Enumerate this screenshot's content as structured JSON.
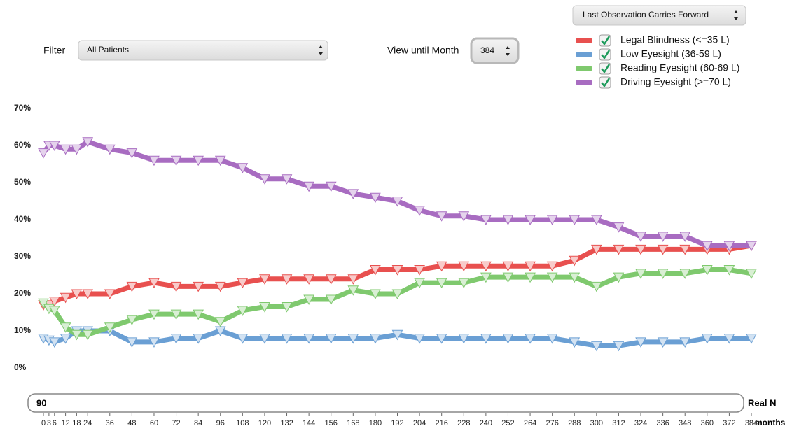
{
  "chart_data": {
    "type": "line",
    "imputation": "Last Observation Carries Forward",
    "filter_label": "Filter",
    "filter": "All Patients",
    "month_label": "View until Month",
    "month": 384,
    "n": 90,
    "n_label": "Real N",
    "xlabel": "months",
    "x": [
      0,
      3,
      6,
      12,
      18,
      24,
      36,
      48,
      60,
      72,
      84,
      96,
      108,
      120,
      132,
      144,
      156,
      168,
      180,
      192,
      204,
      216,
      228,
      240,
      252,
      264,
      276,
      288,
      300,
      312,
      324,
      336,
      348,
      360,
      372,
      384
    ],
    "xlim": [
      0,
      384
    ],
    "xticks": [
      0,
      3,
      6,
      12,
      18,
      24,
      36,
      48,
      60,
      72,
      84,
      96,
      108,
      120,
      132,
      144,
      156,
      168,
      180,
      192,
      204,
      216,
      228,
      240,
      252,
      264,
      276,
      288,
      300,
      312,
      324,
      336,
      348,
      360,
      372,
      384
    ],
    "ylim": [
      0,
      70
    ],
    "yticks": [
      {
        "value": 0,
        "label": "0%"
      },
      {
        "value": 10,
        "label": "10%"
      },
      {
        "value": 20,
        "label": "20%"
      },
      {
        "value": 30,
        "label": "30%"
      },
      {
        "value": 40,
        "label": "40%"
      },
      {
        "value": 50,
        "label": "50%"
      },
      {
        "value": 60,
        "label": "60%"
      },
      {
        "value": 70,
        "label": "70%"
      }
    ],
    "series": [
      {
        "name": "Legal Blindness (<=35 L)",
        "color": "#e8504f",
        "values": [
          17,
          17,
          18,
          19,
          20,
          20,
          20,
          22,
          23,
          22,
          22,
          22,
          23,
          24,
          24,
          24,
          24,
          24,
          26.5,
          26.5,
          26.5,
          27.5,
          27.5,
          27.5,
          27.5,
          27.5,
          27.5,
          29,
          32,
          32,
          32,
          32,
          32,
          32,
          32,
          33
        ]
      },
      {
        "name": "Low Eyesight (36-59 L)",
        "color": "#6a9fd4",
        "values": [
          8,
          7.5,
          7,
          8,
          10,
          10,
          10,
          7,
          7,
          8,
          8,
          10,
          8,
          8,
          8,
          8,
          8,
          8,
          8,
          9,
          8,
          8,
          8,
          8,
          8,
          8,
          8,
          7,
          6,
          6,
          7,
          7,
          7,
          8,
          8,
          8
        ]
      },
      {
        "name": "Reading Eyesight (60-69 L)",
        "color": "#7fc96e",
        "values": [
          17.5,
          16,
          15.5,
          11,
          9,
          9,
          11,
          13,
          14.5,
          14.5,
          14.5,
          12.5,
          15.5,
          16.5,
          16.5,
          18.5,
          18.5,
          21,
          20,
          20,
          23,
          23,
          23,
          24.5,
          24.5,
          24.5,
          24.5,
          24.5,
          22,
          24.5,
          25.5,
          25.5,
          25.5,
          26.5,
          26.5,
          25.5
        ]
      },
      {
        "name": "Driving Eyesight (>=70 L)",
        "color": "#a86cc1",
        "values": [
          58,
          60,
          60,
          59,
          59,
          61,
          59,
          58,
          56,
          56,
          56,
          56,
          54,
          51,
          51,
          49,
          49,
          47,
          46,
          45,
          42.5,
          41,
          41,
          40,
          40,
          40,
          40,
          40,
          40,
          38,
          35.5,
          35.5,
          35.5,
          33,
          33,
          33
        ]
      }
    ]
  }
}
